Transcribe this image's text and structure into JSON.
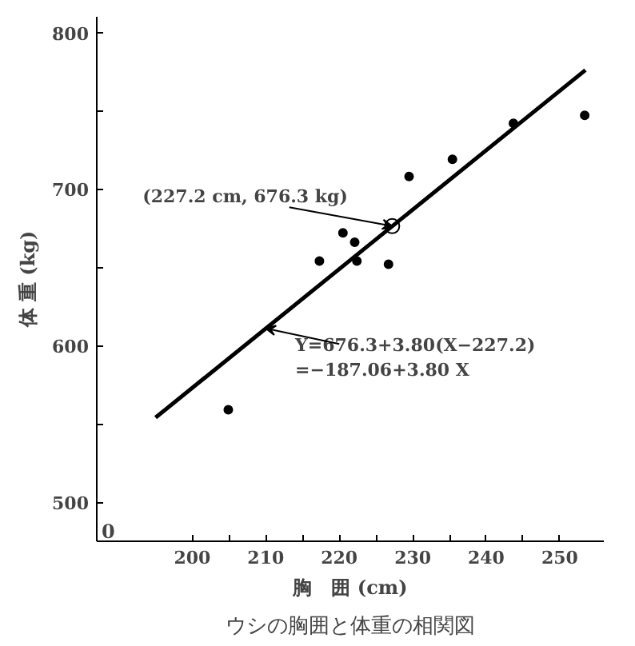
{
  "chart_data": {
    "type": "scatter",
    "title": "ウシの胸囲と体重の相関図",
    "xlabel": "胸　囲 (cm)",
    "ylabel": "体 重 (kg)",
    "xlim": [
      187,
      256
    ],
    "ylim": [
      475,
      810
    ],
    "xticks": [
      200,
      {
        "value": 205,
        "label": null
      },
      210,
      {
        "value": 215,
        "label": null
      },
      220,
      {
        "value": 225,
        "label": null
      },
      230,
      {
        "value": 235,
        "label": null
      },
      240,
      {
        "value": 245,
        "label": null
      },
      250
    ],
    "yticks": [
      500,
      {
        "value": 550,
        "label": null
      },
      600,
      {
        "value": 650,
        "label": null
      },
      700,
      {
        "value": 750,
        "label": null
      },
      800
    ],
    "grid": false,
    "series": [
      {
        "marker": "circle",
        "color": "#000000",
        "x": [
          204.9,
          217.3,
          220.5,
          222.1,
          222.4,
          226.7,
          229.5,
          235.4,
          243.7,
          253.4
        ],
        "values": [
          559,
          654,
          672,
          666,
          654,
          652,
          708,
          719,
          742,
          747
        ]
      },
      {
        "type": "line",
        "color": "#000000",
        "line_style": "solid",
        "x": [
          195,
          253.5
        ],
        "values": [
          554,
          776
        ]
      }
    ],
    "annotations": [
      "0",
      {
        "text": "(227.2 cm, 676.3 kg)",
        "x": 227.2,
        "y": 676.3
      },
      {
        "text": "Y=676.3+3.80(X−227.2)\n =−187.06+3.80 X",
        "x": 210,
        "y": 611
      }
    ]
  }
}
